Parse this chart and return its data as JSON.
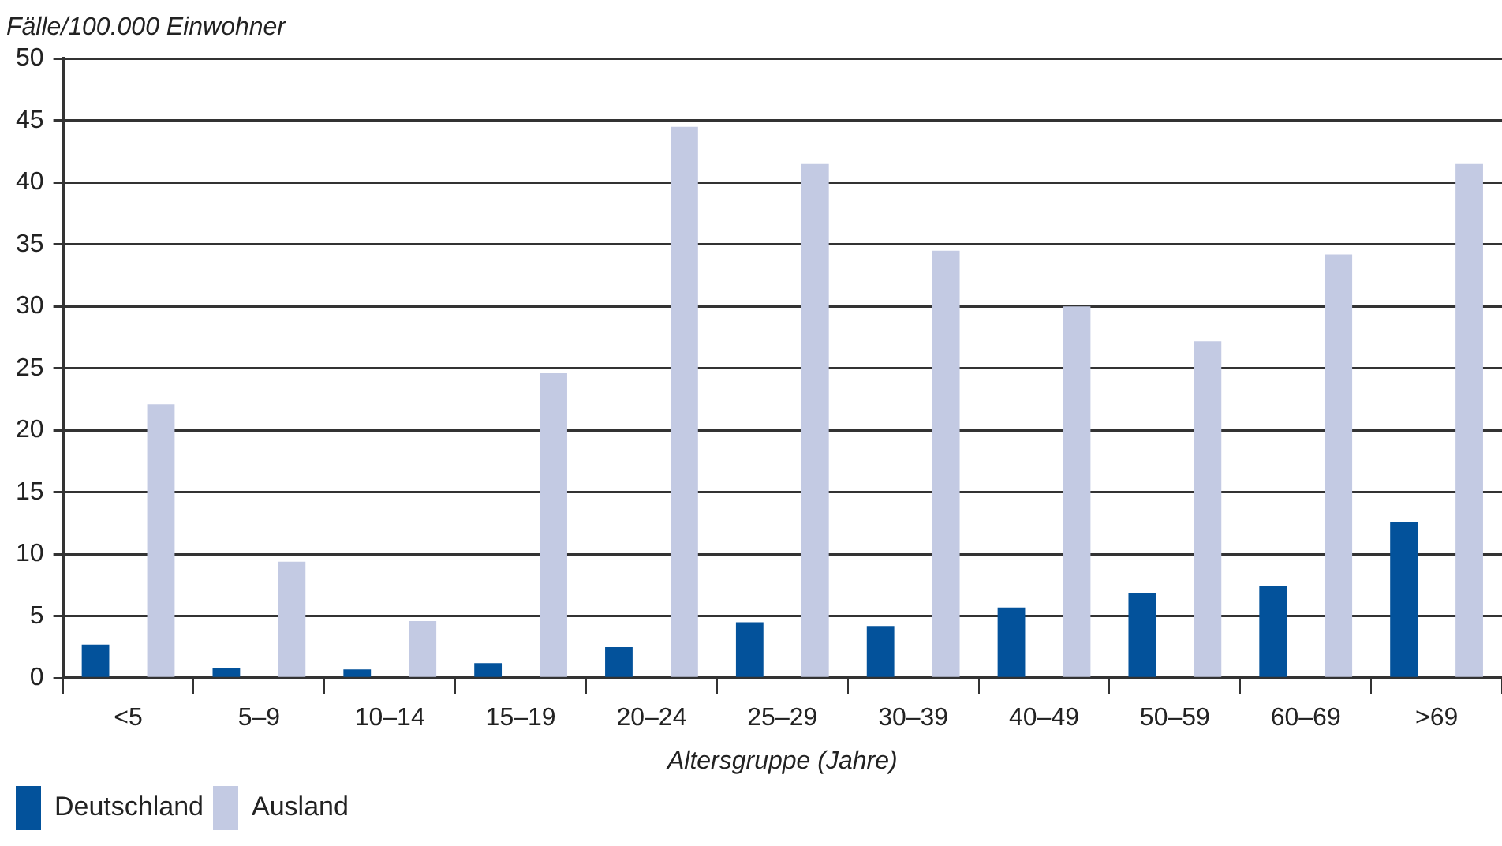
{
  "chart_data": {
    "type": "bar",
    "ylabel": "Fälle/100.000 Einwohner",
    "xlabel": "Altersgruppe (Jahre)",
    "categories": [
      "<5",
      "5–9",
      "10–14",
      "15–19",
      "20–24",
      "25–29",
      "30–39",
      "40–49",
      "50–59",
      "60–69",
      ">69"
    ],
    "series": [
      {
        "name": "Deutschland",
        "color": "#03529b",
        "values": [
          2.7,
          0.8,
          0.7,
          1.2,
          2.5,
          4.5,
          4.2,
          5.7,
          6.9,
          7.4,
          12.6
        ]
      },
      {
        "name": "Ausland",
        "color": "#c3cae3",
        "values": [
          22.1,
          9.4,
          4.6,
          24.6,
          44.5,
          41.5,
          34.5,
          30.0,
          27.2,
          34.2,
          41.5
        ]
      }
    ],
    "ylim": [
      0,
      50
    ],
    "yticks": [
      0,
      5,
      10,
      15,
      20,
      25,
      30,
      35,
      40,
      45,
      50
    ],
    "grid": "y",
    "legend": "bottom left"
  }
}
